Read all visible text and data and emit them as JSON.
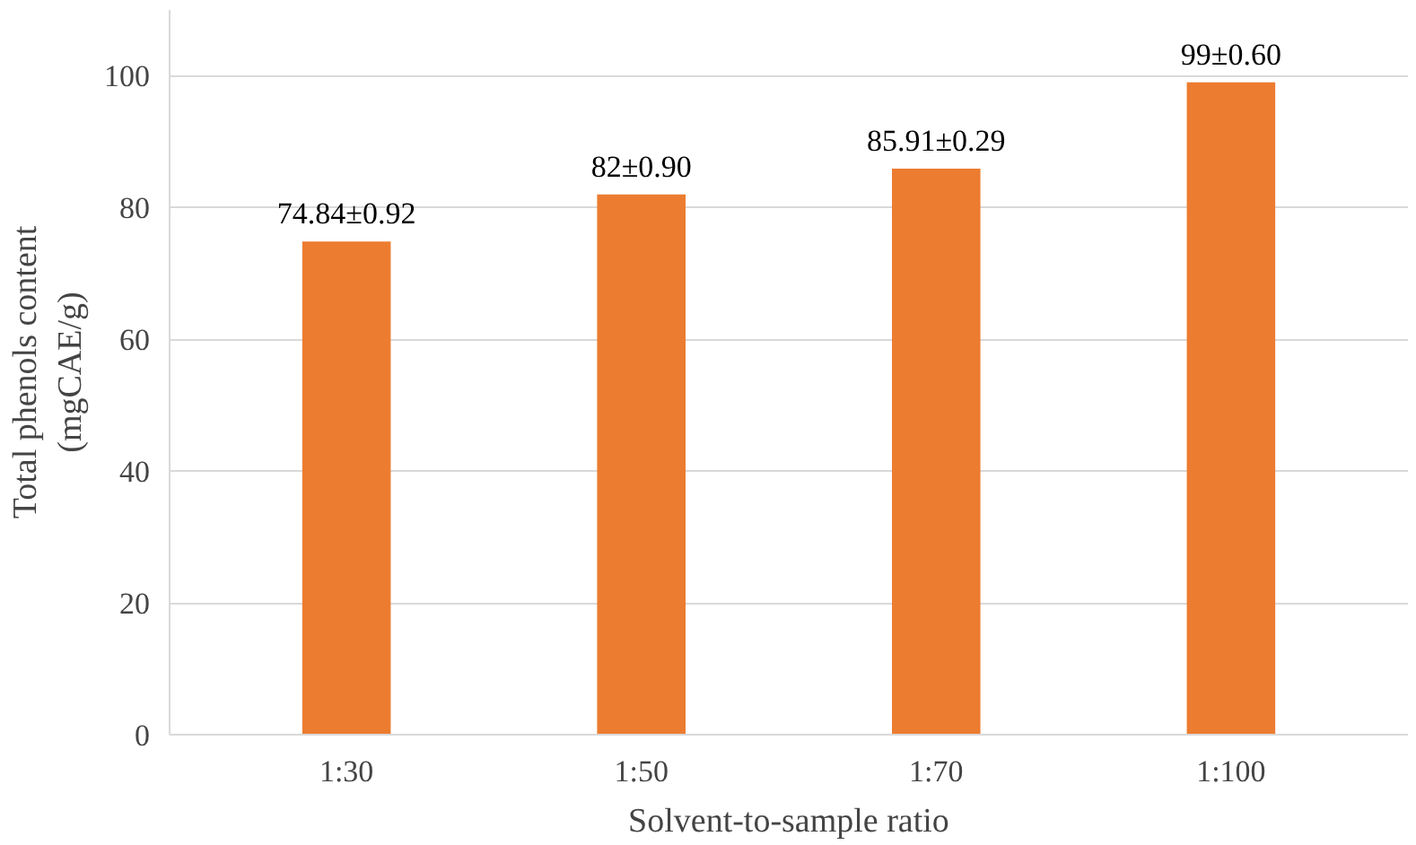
{
  "chart_data": {
    "type": "bar",
    "xlabel": "Solvent-to-sample ratio",
    "ylabel": "Total phenols content\n(mgCAE/g)",
    "categories": [
      "1:30",
      "1:50",
      "1:70",
      "1:100"
    ],
    "values": [
      74.84,
      82,
      85.91,
      99
    ],
    "value_labels": [
      "74.84±0.92",
      "82±0.90",
      "85.91±0.29",
      "99±0.60"
    ],
    "color": "#ec7c30",
    "ylim": [
      0,
      110
    ],
    "yticks": [
      0,
      20,
      40,
      60,
      80,
      100
    ],
    "grid": "y"
  }
}
